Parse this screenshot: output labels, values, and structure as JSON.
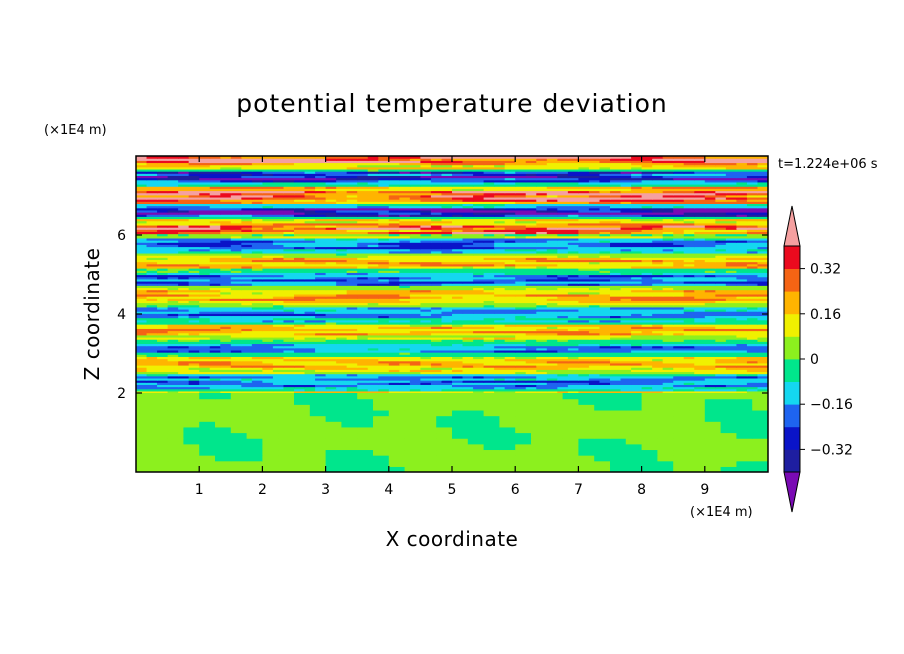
{
  "chart_data": {
    "type": "heatmap",
    "title": "potential temperature deviation",
    "xlabel": "X coordinate",
    "ylabel": "Z coordinate",
    "x_unit": "(×1E4 m)",
    "y_unit": "(×1E4 m)",
    "time_label": "t=1.224e+06 s",
    "xlim": [
      0,
      10
    ],
    "ylim": [
      0,
      8
    ],
    "x_ticks": [
      "1",
      "2",
      "3",
      "4",
      "5",
      "6",
      "7",
      "8",
      "9"
    ],
    "x_tick_values": [
      1,
      2,
      3,
      4,
      5,
      6,
      7,
      8,
      9
    ],
    "y_ticks": [
      "2",
      "4",
      "6"
    ],
    "y_tick_values": [
      2,
      4,
      6
    ],
    "colorbar": {
      "levels": [
        -0.48,
        -0.4,
        -0.32,
        -0.24,
        -0.16,
        -0.08,
        0,
        0.08,
        0.16,
        0.24,
        0.32,
        0.4,
        0.48
      ],
      "colors": [
        "#7a0ab4",
        "#1e1ea0",
        "#0a14c8",
        "#1e64f0",
        "#14d7f0",
        "#00e68c",
        "#8cf01e",
        "#f0f000",
        "#ffb400",
        "#f56414",
        "#eb0a1e",
        "#f5a0a0"
      ],
      "tick_labels": [
        "0.32",
        "0.16",
        "0",
        "-0.16",
        "-0.32"
      ],
      "tick_values": [
        0.32,
        0.16,
        0,
        -0.16,
        -0.32
      ],
      "extend": "both"
    },
    "description_bands": {
      "lower_region_z_max": 2,
      "lower_region_values": "near zero (-0.08 to 0.08)",
      "upper_region_pattern": "horizontal layered bands of alternating sign",
      "strongest_values_z_range": [
        6,
        8
      ]
    }
  }
}
